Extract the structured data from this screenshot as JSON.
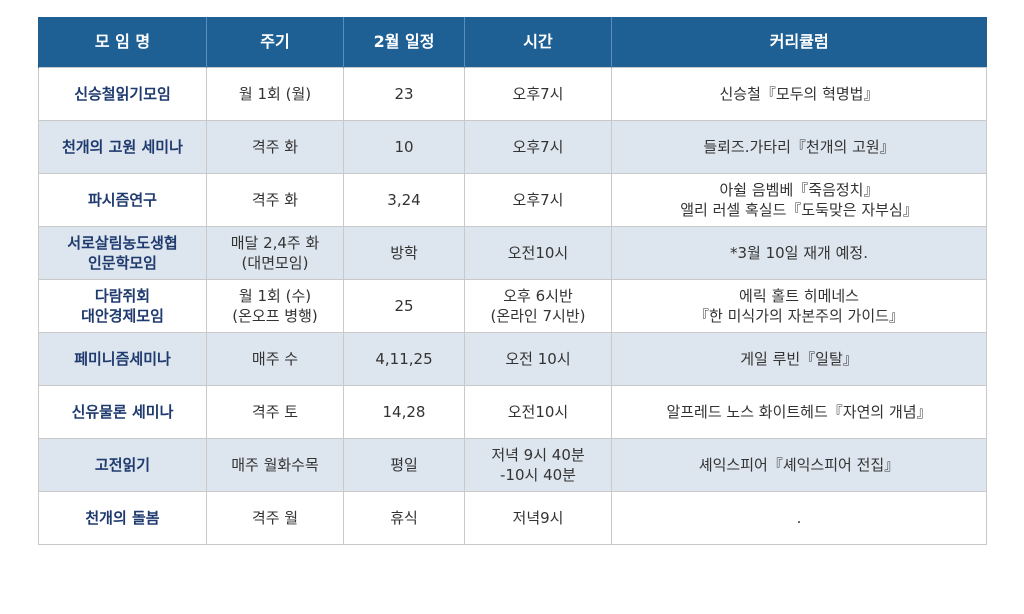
{
  "headers": [
    "모 임 명",
    "주기",
    "2월 일정",
    "시간",
    "커리큘럼"
  ],
  "rows": [
    {
      "name": "신승철읽기모임",
      "cycle": "월 1회 (월)",
      "feb_schedule": "23",
      "time": "오후7시",
      "curriculum": "신승철『모두의 혁명법』"
    },
    {
      "name": "천개의 고원 세미나",
      "cycle": "격주 화",
      "feb_schedule": "10",
      "time": "오후7시",
      "curriculum": "들뢰즈.가타리『천개의 고원』"
    },
    {
      "name": "파시즘연구",
      "cycle": "격주 화",
      "feb_schedule": "3,24",
      "time": "오후7시",
      "curriculum": "아쉴 음벰베『죽음정치』\n앨리 러셀 혹실드『도둑맞은 자부심』"
    },
    {
      "name": "서로살림농도생협\n인문학모임",
      "cycle": "매달 2,4주 화\n(대면모임)",
      "feb_schedule": "방학",
      "time": "오전10시",
      "curriculum": "*3월 10일 재개 예정."
    },
    {
      "name": "다람쥐회\n대안경제모임",
      "cycle": "월 1회 (수)\n(온오프 병행)",
      "feb_schedule": "25",
      "time": "오후 6시반\n(온라인 7시반)",
      "curriculum": "에릭 홀트 히메네스\n『한 미식가의 자본주의 가이드』"
    },
    {
      "name": "페미니즘세미나",
      "cycle": "매주 수",
      "feb_schedule": "4,11,25",
      "time": "오전 10시",
      "curriculum": "게일 루빈『일탈』"
    },
    {
      "name": "신유물론 세미나",
      "cycle": "격주 토",
      "feb_schedule": "14,28",
      "time": "오전10시",
      "curriculum": "알프레드 노스 화이트헤드『자연의 개념』"
    },
    {
      "name": "고전읽기",
      "cycle": "매주 월화수목",
      "feb_schedule": "평일",
      "time": "저녁 9시 40분\n-10시 40분",
      "curriculum": "셰익스피어『셰익스피어 전집』"
    },
    {
      "name": "천개의 돌봄",
      "cycle": "격주 월",
      "feb_schedule": "휴식",
      "time": "저녁9시",
      "curriculum": "."
    }
  ],
  "colors": {
    "header_bg": "#1e5f94",
    "header_text": "#ffffff",
    "stripe_bg": "#dde6ef",
    "name_text": "#1f3a6e",
    "body_text": "#333333",
    "border": "#c9c9c9"
  }
}
